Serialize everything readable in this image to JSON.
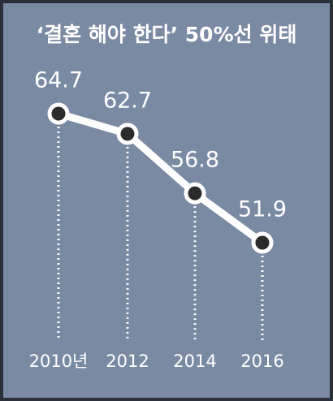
{
  "chart_data": {
    "type": "line",
    "title": "‘결혼 해야 한다’ 50%선 위태",
    "categories": [
      "2010년",
      "2012",
      "2014",
      "2016"
    ],
    "values": [
      64.7,
      62.7,
      56.8,
      51.9
    ],
    "color": "#ffffff"
  }
}
